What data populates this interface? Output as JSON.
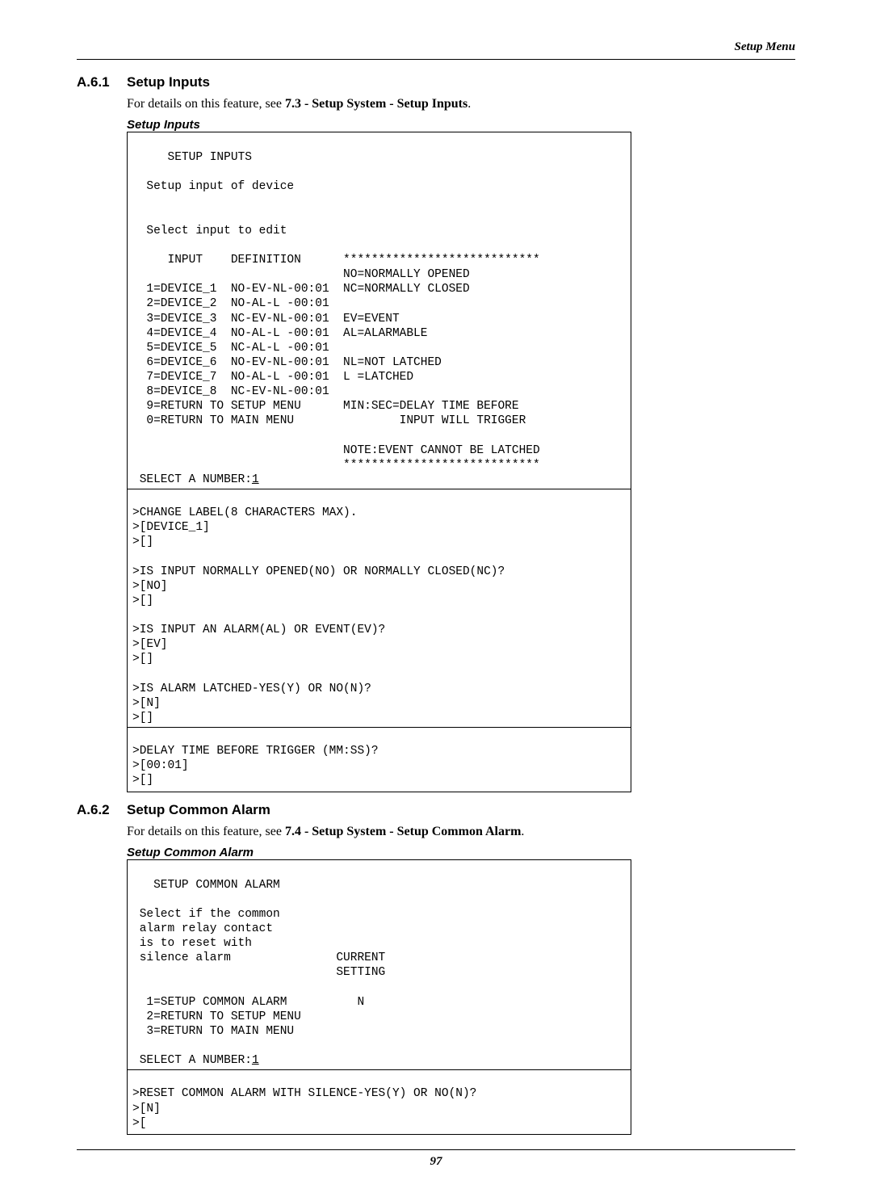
{
  "header": {
    "right": "Setup Menu"
  },
  "section1": {
    "number": "A.6.1",
    "title": "Setup Inputs",
    "intro_prefix": "For details on this feature, see ",
    "intro_bold": "7.3 - Setup System - Setup Inputs",
    "intro_suffix": ".",
    "box_label": "Setup Inputs",
    "line_setup": "     SETUP INPUTS",
    "line_setup_input": "  Setup input of device",
    "line_select_input": "  Select input to edit",
    "line_hdr": "     INPUT    DEFINITION      ****************************",
    "line_no": "                              NO=NORMALLY OPENED",
    "line_d1": "  1=DEVICE_1  NO-EV-NL-00:01  NC=NORMALLY CLOSED",
    "line_d2": "  2=DEVICE_2  NO-AL-L -00:01",
    "line_d3": "  3=DEVICE_3  NC-EV-NL-00:01  EV=EVENT",
    "line_d4": "  4=DEVICE_4  NO-AL-L -00:01  AL=ALARMABLE",
    "line_d5": "  5=DEVICE_5  NC-AL-L -00:01",
    "line_d6": "  6=DEVICE_6  NO-EV-NL-00:01  NL=NOT LATCHED",
    "line_d7": "  7=DEVICE_7  NO-AL-L -00:01  L =LATCHED",
    "line_d8": "  8=DEVICE_8  NC-EV-NL-00:01",
    "line_d9": "  9=RETURN TO SETUP MENU      MIN:SEC=DELAY TIME BEFORE",
    "line_d0": "  0=RETURN TO MAIN MENU               INPUT WILL TRIGGER",
    "line_note": "                              NOTE:EVENT CANNOT BE LATCHED",
    "line_stars": "                              ****************************",
    "line_sel_pre": " SELECT A NUMBER:",
    "line_sel_val": "1",
    "q1a": ">CHANGE LABEL(8 CHARACTERS MAX).",
    "q1b": ">[DEVICE_1]",
    "q1c": ">[]",
    "q2a": ">IS INPUT NORMALLY OPENED(NO) OR NORMALLY CLOSED(NC)?",
    "q2b": ">[NO]",
    "q2c": ">[]",
    "q3a": ">IS INPUT AN ALARM(AL) OR EVENT(EV)?",
    "q3b": ">[EV]",
    "q3c": ">[]",
    "q4a": ">IS ALARM LATCHED-YES(Y) OR NO(N)?",
    "q4b": ">[N]",
    "q4c": ">[]",
    "q5a": ">DELAY TIME BEFORE TRIGGER (MM:SS)?",
    "q5b": ">[00:01]",
    "q5c": ">[]"
  },
  "section2": {
    "number": "A.6.2",
    "title": "Setup Common Alarm",
    "intro_prefix": "For details on this feature, see ",
    "intro_bold": "7.4 - Setup System - Setup Common Alarm",
    "intro_suffix": ".",
    "box_label": "Setup Common Alarm",
    "l1": "   SETUP COMMON ALARM",
    "l2": " Select if the common",
    "l3": " alarm relay contact",
    "l4": " is to reset with",
    "l5": " silence alarm               CURRENT",
    "l6": "                             SETTING",
    "l7": "  1=SETUP COMMON ALARM          N",
    "l8": "  2=RETURN TO SETUP MENU",
    "l9": "  3=RETURN TO MAIN MENU",
    "sel_pre": " SELECT A NUMBER:",
    "sel_val": "1",
    "q1a": ">RESET COMMON ALARM WITH SILENCE-YES(Y) OR NO(N)?",
    "q1b": ">[N]",
    "q1c": ">["
  },
  "footer": {
    "page_num": "97"
  },
  "colors": {
    "text": "#000000",
    "bg": "#ffffff",
    "border": "#000000"
  },
  "fonts": {
    "body": "Georgia/Times, serif",
    "heading": "Arial/Helvetica, sans-serif",
    "terminal": "Courier New, monospace"
  }
}
